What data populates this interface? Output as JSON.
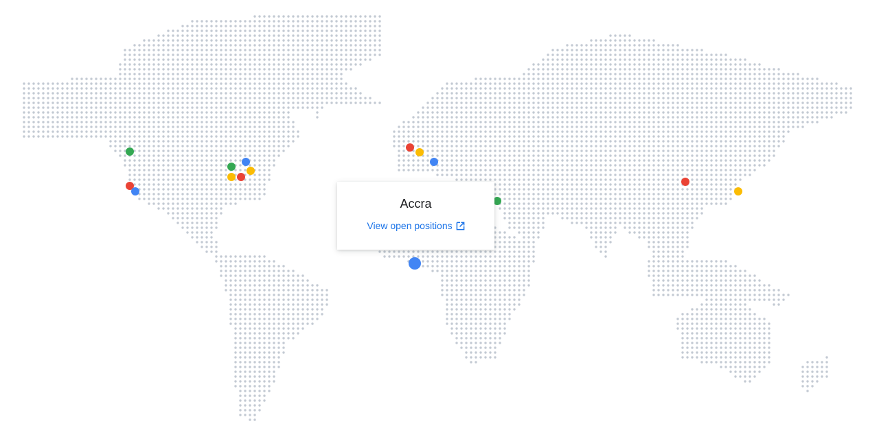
{
  "map": {
    "dot_color": "#c3cad3",
    "marker_colors": {
      "green": "#34a853",
      "red": "#ea4335",
      "blue": "#4285f4",
      "yellow": "#fbbc04"
    },
    "markers": [
      "green",
      "red",
      "blue",
      "green",
      "blue",
      "yellow",
      "yellow",
      "red",
      "red",
      "yellow",
      "blue",
      "green",
      "red",
      "yellow"
    ],
    "selected_marker": {
      "color": "blue",
      "city": "Accra"
    }
  },
  "tooltip": {
    "city": "Accra",
    "link_label": "View open positions",
    "link_icon": "open-in-new-icon"
  }
}
